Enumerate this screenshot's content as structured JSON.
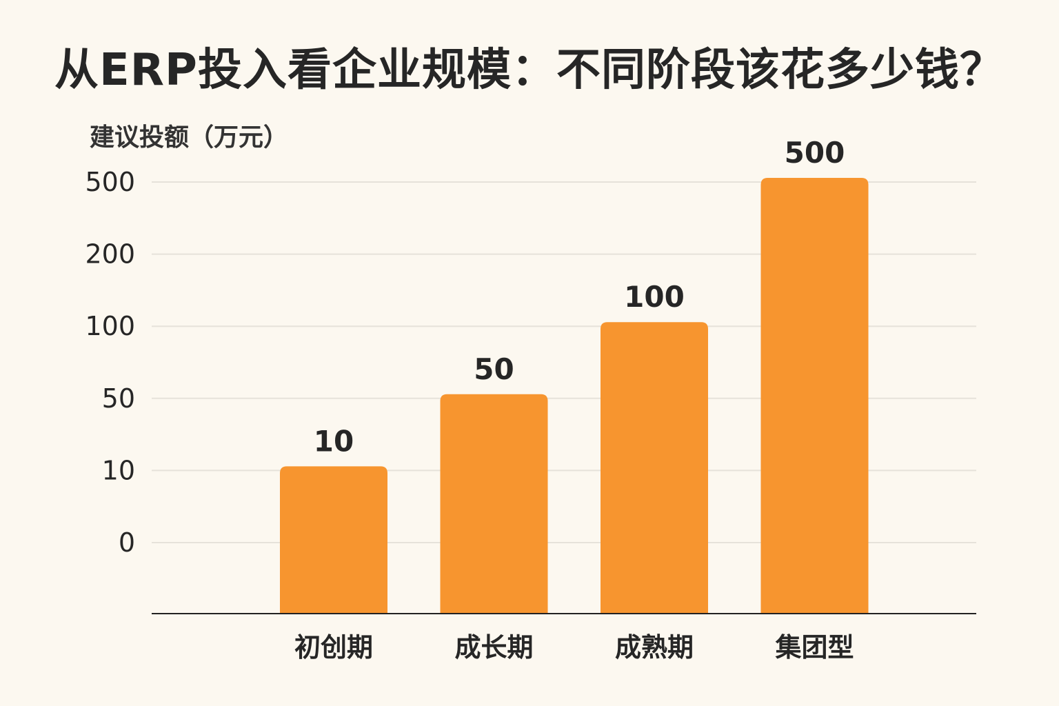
{
  "chart_data": {
    "type": "bar",
    "title": "从ERP投入看企业规模：不同阶段该花多少钱？",
    "ylabel": "建议投额（万元）",
    "xlabel": "",
    "y_ticks": [
      "0",
      "10",
      "50",
      "100",
      "200",
      "500"
    ],
    "y_scale": "categorical-uneven",
    "categories": [
      "初创期",
      "成长期",
      "成熟期",
      "集团型"
    ],
    "values": [
      10,
      50,
      100,
      500
    ],
    "value_labels": [
      "10",
      "50",
      "100",
      "500"
    ],
    "grid": true,
    "legend": "none",
    "bar_color": "#f7952f",
    "grid_color": "#e6e2da",
    "axis_color": "#222222"
  }
}
